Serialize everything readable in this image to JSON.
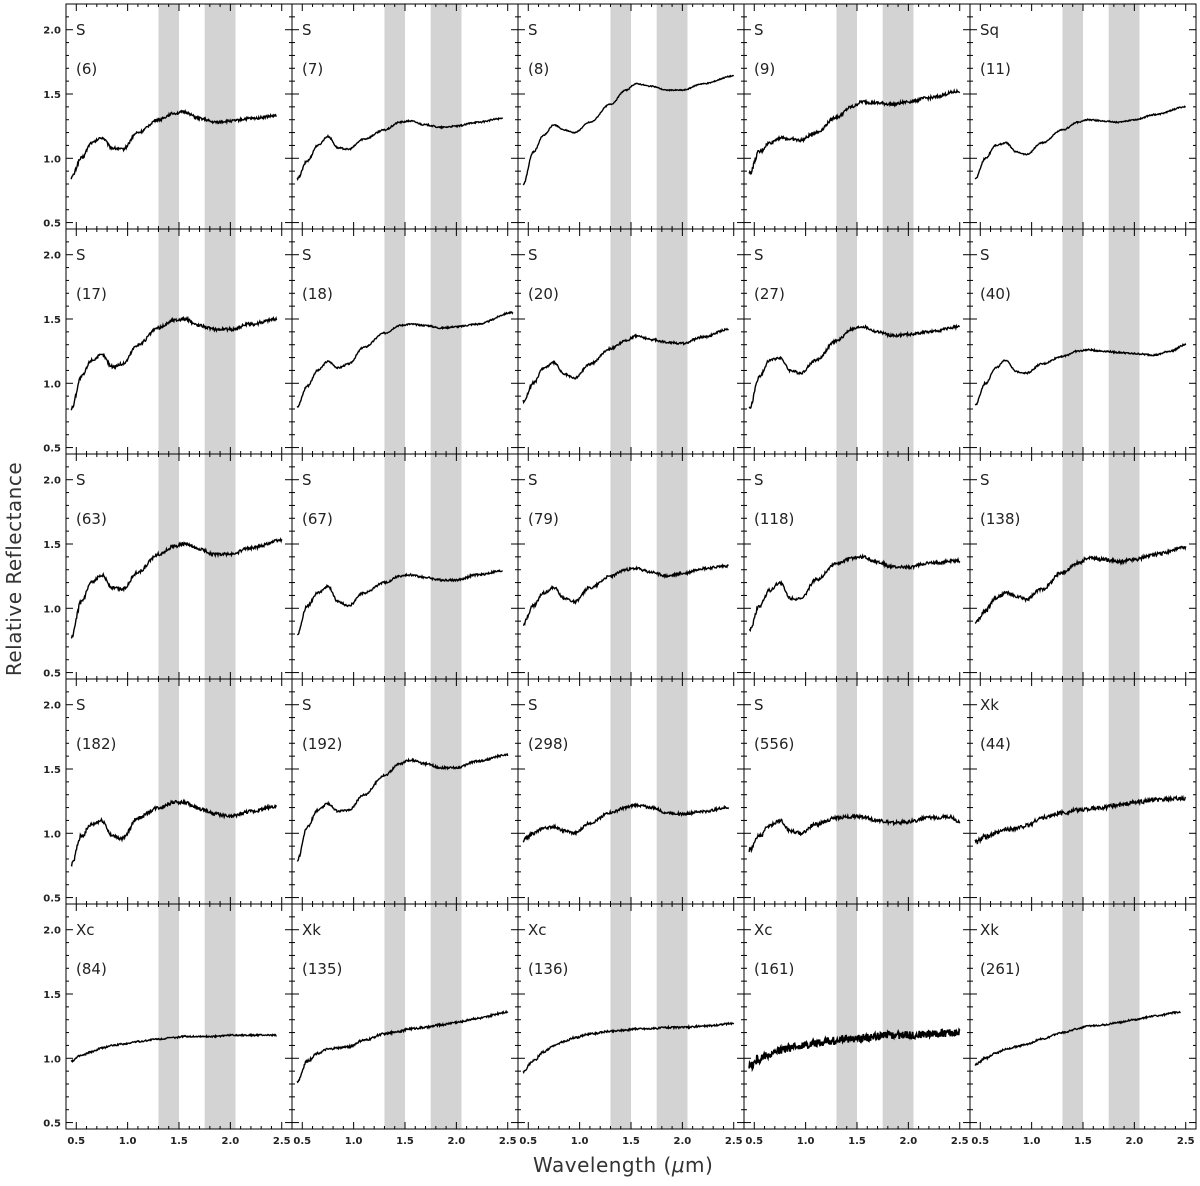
{
  "figure": {
    "ylabel": "Relative Reflectance",
    "xlabel_prefix": "Wavelength (",
    "xlabel_mu": "μ",
    "xlabel_suffix": "m)",
    "colors": {
      "line": "#000000",
      "band": "#d3d3d3",
      "frame": "#000000"
    }
  },
  "chart_data": {
    "type": "line",
    "layout": "grid 5 rows x 5 columns, shared axes",
    "xlabel": "Wavelength (μm)",
    "ylabel": "Relative Reflectance",
    "xlim": [
      0.4,
      2.6
    ],
    "ylim": [
      0.45,
      2.2
    ],
    "xticks": [
      "0.5",
      "1.0",
      "1.5",
      "2.0",
      "2.5"
    ],
    "yticks": [
      "0.5",
      "1.0",
      "1.5",
      "2.0"
    ],
    "shaded_bands": [
      [
        1.3,
        1.5
      ],
      [
        1.75,
        2.05
      ]
    ],
    "grid": false,
    "legend": "none",
    "panels": [
      {
        "type_label": "S",
        "id": "(6)",
        "x": [
          0.45,
          0.55,
          0.65,
          0.75,
          0.85,
          0.95,
          1.1,
          1.3,
          1.45,
          1.55,
          1.7,
          1.85,
          2.0,
          2.2,
          2.45
        ],
        "y": [
          0.85,
          1.0,
          1.12,
          1.16,
          1.08,
          1.07,
          1.2,
          1.3,
          1.35,
          1.36,
          1.31,
          1.28,
          1.29,
          1.31,
          1.33
        ],
        "noise": 0.01
      },
      {
        "type_label": "S",
        "id": "(7)",
        "x": [
          0.45,
          0.55,
          0.65,
          0.75,
          0.85,
          0.95,
          1.1,
          1.3,
          1.45,
          1.55,
          1.7,
          1.85,
          2.0,
          2.2,
          2.45
        ],
        "y": [
          0.84,
          0.98,
          1.1,
          1.17,
          1.08,
          1.07,
          1.15,
          1.22,
          1.28,
          1.29,
          1.26,
          1.24,
          1.25,
          1.28,
          1.31
        ],
        "noise": 0.006
      },
      {
        "type_label": "S",
        "id": "(8)",
        "x": [
          0.45,
          0.55,
          0.65,
          0.75,
          0.85,
          0.95,
          1.1,
          1.3,
          1.45,
          1.55,
          1.7,
          1.85,
          2.0,
          2.2,
          2.5
        ],
        "y": [
          0.8,
          1.05,
          1.18,
          1.26,
          1.22,
          1.2,
          1.28,
          1.42,
          1.53,
          1.58,
          1.56,
          1.53,
          1.53,
          1.58,
          1.64
        ],
        "noise": 0.004
      },
      {
        "type_label": "S",
        "id": "(9)",
        "x": [
          0.45,
          0.55,
          0.65,
          0.75,
          0.85,
          0.95,
          1.1,
          1.3,
          1.45,
          1.55,
          1.7,
          1.85,
          2.0,
          2.2,
          2.5
        ],
        "y": [
          0.88,
          1.05,
          1.12,
          1.16,
          1.15,
          1.14,
          1.2,
          1.32,
          1.4,
          1.44,
          1.43,
          1.42,
          1.44,
          1.47,
          1.52
        ],
        "noise": 0.012
      },
      {
        "type_label": "Sq",
        "id": "(11)",
        "x": [
          0.45,
          0.55,
          0.65,
          0.75,
          0.85,
          0.95,
          1.1,
          1.3,
          1.45,
          1.55,
          1.7,
          1.85,
          2.0,
          2.2,
          2.5
        ],
        "y": [
          0.84,
          1.0,
          1.1,
          1.12,
          1.05,
          1.03,
          1.12,
          1.22,
          1.28,
          1.3,
          1.29,
          1.28,
          1.3,
          1.34,
          1.4
        ],
        "noise": 0.005
      },
      {
        "type_label": "S",
        "id": "(17)",
        "x": [
          0.45,
          0.55,
          0.65,
          0.75,
          0.85,
          0.95,
          1.1,
          1.3,
          1.45,
          1.55,
          1.7,
          1.85,
          2.0,
          2.2,
          2.45
        ],
        "y": [
          0.8,
          1.05,
          1.18,
          1.22,
          1.13,
          1.15,
          1.3,
          1.43,
          1.49,
          1.5,
          1.45,
          1.42,
          1.42,
          1.46,
          1.5
        ],
        "noise": 0.012
      },
      {
        "type_label": "S",
        "id": "(18)",
        "x": [
          0.45,
          0.55,
          0.65,
          0.75,
          0.85,
          0.95,
          1.1,
          1.3,
          1.45,
          1.55,
          1.7,
          1.85,
          2.0,
          2.2,
          2.55
        ],
        "y": [
          0.82,
          0.98,
          1.1,
          1.17,
          1.12,
          1.15,
          1.28,
          1.39,
          1.45,
          1.46,
          1.45,
          1.43,
          1.44,
          1.46,
          1.55
        ],
        "noise": 0.006
      },
      {
        "type_label": "S",
        "id": "(20)",
        "x": [
          0.45,
          0.55,
          0.65,
          0.75,
          0.85,
          0.95,
          1.1,
          1.3,
          1.45,
          1.55,
          1.7,
          1.85,
          2.0,
          2.2,
          2.45
        ],
        "y": [
          0.86,
          1.0,
          1.12,
          1.16,
          1.07,
          1.04,
          1.15,
          1.27,
          1.33,
          1.37,
          1.34,
          1.32,
          1.31,
          1.36,
          1.42
        ],
        "noise": 0.008
      },
      {
        "type_label": "S",
        "id": "(27)",
        "x": [
          0.45,
          0.55,
          0.65,
          0.75,
          0.85,
          0.95,
          1.1,
          1.3,
          1.45,
          1.55,
          1.7,
          1.85,
          2.0,
          2.2,
          2.5
        ],
        "y": [
          0.8,
          1.05,
          1.18,
          1.2,
          1.1,
          1.08,
          1.18,
          1.33,
          1.42,
          1.44,
          1.4,
          1.37,
          1.38,
          1.4,
          1.44
        ],
        "noise": 0.01
      },
      {
        "type_label": "S",
        "id": "(40)",
        "x": [
          0.45,
          0.55,
          0.65,
          0.75,
          0.85,
          0.95,
          1.1,
          1.3,
          1.45,
          1.55,
          1.7,
          1.85,
          2.0,
          2.2,
          2.35,
          2.5
        ],
        "y": [
          0.83,
          1.0,
          1.12,
          1.18,
          1.09,
          1.08,
          1.15,
          1.21,
          1.25,
          1.26,
          1.25,
          1.24,
          1.23,
          1.22,
          1.25,
          1.3
        ],
        "noise": 0.006
      },
      {
        "type_label": "S",
        "id": "(63)",
        "x": [
          0.45,
          0.55,
          0.65,
          0.75,
          0.85,
          0.95,
          1.1,
          1.3,
          1.45,
          1.55,
          1.7,
          1.85,
          2.0,
          2.2,
          2.5
        ],
        "y": [
          0.77,
          1.05,
          1.2,
          1.26,
          1.16,
          1.15,
          1.28,
          1.42,
          1.48,
          1.5,
          1.46,
          1.42,
          1.42,
          1.47,
          1.53
        ],
        "noise": 0.012
      },
      {
        "type_label": "S",
        "id": "(67)",
        "x": [
          0.45,
          0.55,
          0.65,
          0.75,
          0.85,
          0.95,
          1.1,
          1.3,
          1.45,
          1.55,
          1.7,
          1.85,
          2.0,
          2.2,
          2.45
        ],
        "y": [
          0.8,
          1.02,
          1.12,
          1.17,
          1.05,
          1.02,
          1.12,
          1.2,
          1.25,
          1.26,
          1.24,
          1.22,
          1.22,
          1.26,
          1.29
        ],
        "noise": 0.008
      },
      {
        "type_label": "S",
        "id": "(79)",
        "x": [
          0.45,
          0.55,
          0.65,
          0.75,
          0.85,
          0.95,
          1.1,
          1.3,
          1.45,
          1.55,
          1.7,
          1.85,
          2.0,
          2.2,
          2.45
        ],
        "y": [
          0.88,
          1.02,
          1.12,
          1.16,
          1.08,
          1.05,
          1.16,
          1.25,
          1.3,
          1.31,
          1.28,
          1.25,
          1.27,
          1.31,
          1.33
        ],
        "noise": 0.01
      },
      {
        "type_label": "S",
        "id": "(118)",
        "x": [
          0.45,
          0.55,
          0.65,
          0.75,
          0.85,
          0.95,
          1.1,
          1.3,
          1.45,
          1.55,
          1.7,
          1.85,
          2.0,
          2.2,
          2.5
        ],
        "y": [
          0.82,
          1.02,
          1.14,
          1.2,
          1.08,
          1.07,
          1.22,
          1.35,
          1.39,
          1.4,
          1.36,
          1.32,
          1.32,
          1.35,
          1.37
        ],
        "noise": 0.012
      },
      {
        "type_label": "S",
        "id": "(138)",
        "x": [
          0.45,
          0.55,
          0.65,
          0.75,
          0.85,
          0.95,
          1.1,
          1.3,
          1.45,
          1.55,
          1.7,
          1.85,
          2.0,
          2.2,
          2.5
        ],
        "y": [
          0.88,
          0.98,
          1.08,
          1.12,
          1.09,
          1.07,
          1.15,
          1.28,
          1.35,
          1.39,
          1.38,
          1.36,
          1.38,
          1.42,
          1.47
        ],
        "noise": 0.014
      },
      {
        "type_label": "S",
        "id": "(182)",
        "x": [
          0.45,
          0.55,
          0.65,
          0.75,
          0.85,
          0.95,
          1.1,
          1.3,
          1.45,
          1.55,
          1.7,
          1.85,
          2.0,
          2.2,
          2.45
        ],
        "y": [
          0.75,
          0.98,
          1.07,
          1.1,
          0.98,
          0.96,
          1.12,
          1.2,
          1.24,
          1.24,
          1.19,
          1.15,
          1.13,
          1.17,
          1.21
        ],
        "noise": 0.014
      },
      {
        "type_label": "S",
        "id": "(192)",
        "x": [
          0.45,
          0.55,
          0.65,
          0.75,
          0.85,
          0.95,
          1.1,
          1.3,
          1.45,
          1.55,
          1.7,
          1.85,
          2.0,
          2.2,
          2.5
        ],
        "y": [
          0.79,
          1.05,
          1.18,
          1.23,
          1.17,
          1.18,
          1.3,
          1.45,
          1.54,
          1.57,
          1.54,
          1.51,
          1.51,
          1.56,
          1.61
        ],
        "noise": 0.008
      },
      {
        "type_label": "S",
        "id": "(298)",
        "x": [
          0.45,
          0.55,
          0.65,
          0.75,
          0.85,
          0.95,
          1.1,
          1.3,
          1.45,
          1.55,
          1.7,
          1.85,
          2.0,
          2.2,
          2.45
        ],
        "y": [
          0.95,
          1.0,
          1.04,
          1.05,
          1.02,
          1.0,
          1.08,
          1.16,
          1.2,
          1.22,
          1.2,
          1.16,
          1.15,
          1.17,
          1.2
        ],
        "noise": 0.01
      },
      {
        "type_label": "S",
        "id": "(556)",
        "x": [
          0.45,
          0.55,
          0.65,
          0.75,
          0.85,
          0.95,
          1.1,
          1.3,
          1.45,
          1.55,
          1.7,
          1.85,
          2.0,
          2.2,
          2.4,
          2.5
        ],
        "y": [
          0.87,
          0.98,
          1.06,
          1.1,
          1.02,
          1.0,
          1.07,
          1.12,
          1.13,
          1.13,
          1.1,
          1.08,
          1.09,
          1.12,
          1.13,
          1.09
        ],
        "noise": 0.014
      },
      {
        "type_label": "Xk",
        "id": "(44)",
        "x": [
          0.45,
          0.55,
          0.65,
          0.75,
          0.85,
          0.95,
          1.1,
          1.3,
          1.45,
          1.55,
          1.7,
          1.85,
          2.0,
          2.2,
          2.5
        ],
        "y": [
          0.93,
          0.97,
          1.0,
          1.03,
          1.04,
          1.06,
          1.12,
          1.16,
          1.18,
          1.19,
          1.2,
          1.22,
          1.24,
          1.26,
          1.27
        ],
        "noise": 0.016
      },
      {
        "type_label": "Xc",
        "id": "(84)",
        "x": [
          0.45,
          0.55,
          0.65,
          0.75,
          0.85,
          0.95,
          1.1,
          1.3,
          1.45,
          1.55,
          1.7,
          1.85,
          2.0,
          2.2,
          2.45
        ],
        "y": [
          0.98,
          1.02,
          1.05,
          1.08,
          1.1,
          1.11,
          1.13,
          1.15,
          1.16,
          1.17,
          1.17,
          1.17,
          1.18,
          1.18,
          1.18
        ],
        "noise": 0.006
      },
      {
        "type_label": "Xk",
        "id": "(135)",
        "x": [
          0.45,
          0.55,
          0.65,
          0.75,
          0.85,
          0.95,
          1.1,
          1.3,
          1.45,
          1.55,
          1.7,
          1.85,
          2.0,
          2.2,
          2.5
        ],
        "y": [
          0.82,
          0.98,
          1.04,
          1.07,
          1.08,
          1.09,
          1.14,
          1.19,
          1.21,
          1.23,
          1.24,
          1.26,
          1.28,
          1.31,
          1.36
        ],
        "noise": 0.008
      },
      {
        "type_label": "Xc",
        "id": "(136)",
        "x": [
          0.45,
          0.55,
          0.65,
          0.75,
          0.85,
          0.95,
          1.1,
          1.3,
          1.45,
          1.55,
          1.7,
          1.85,
          2.0,
          2.2,
          2.5
        ],
        "y": [
          0.9,
          0.98,
          1.05,
          1.1,
          1.13,
          1.16,
          1.19,
          1.21,
          1.22,
          1.23,
          1.23,
          1.24,
          1.24,
          1.25,
          1.27
        ],
        "noise": 0.007
      },
      {
        "type_label": "Xc",
        "id": "(161)",
        "x": [
          0.45,
          0.55,
          0.65,
          0.75,
          0.85,
          0.95,
          1.1,
          1.3,
          1.45,
          1.55,
          1.7,
          1.85,
          2.0,
          2.2,
          2.5
        ],
        "y": [
          0.94,
          1.0,
          1.03,
          1.06,
          1.08,
          1.1,
          1.12,
          1.14,
          1.15,
          1.16,
          1.17,
          1.18,
          1.18,
          1.19,
          1.2
        ],
        "noise": 0.03
      },
      {
        "type_label": "Xk",
        "id": "(261)",
        "x": [
          0.45,
          0.55,
          0.65,
          0.75,
          0.85,
          0.95,
          1.1,
          1.3,
          1.45,
          1.55,
          1.7,
          1.85,
          2.0,
          2.2,
          2.45
        ],
        "y": [
          0.95,
          1.0,
          1.04,
          1.07,
          1.09,
          1.11,
          1.15,
          1.2,
          1.23,
          1.25,
          1.26,
          1.28,
          1.3,
          1.33,
          1.36
        ],
        "noise": 0.006
      }
    ]
  }
}
